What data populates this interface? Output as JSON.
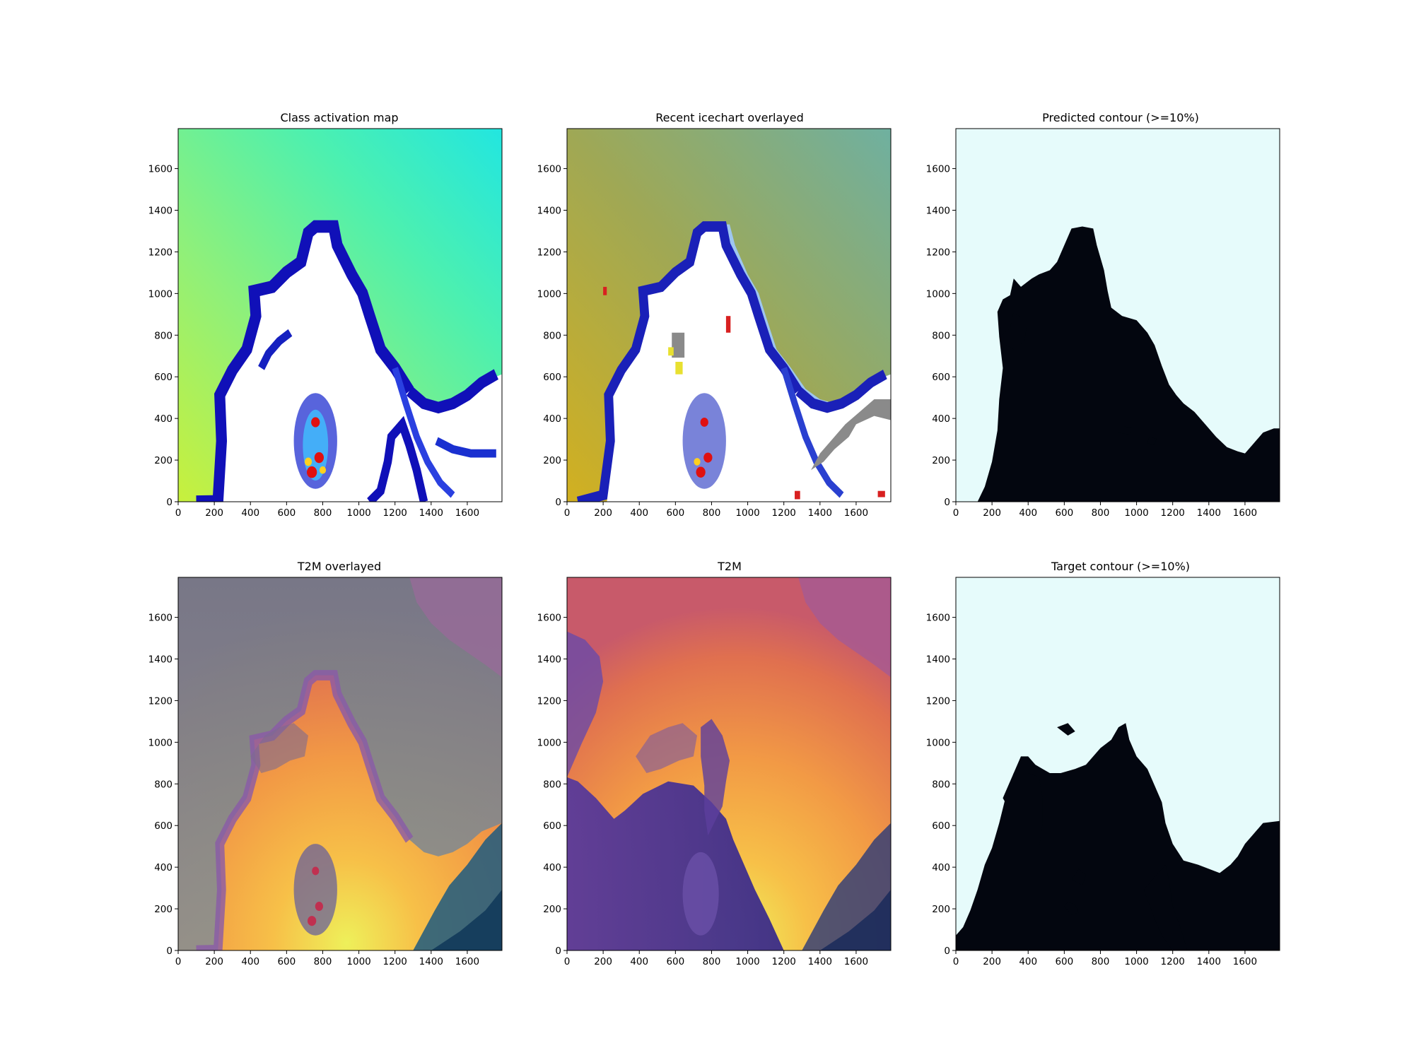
{
  "colors": {
    "frame": "#000000",
    "land_mask": "#03060f",
    "water_mask": "#e6fbfb",
    "cam_low": "#1b1bd6",
    "cam_high": "#c8f03c",
    "t2m_warm": "#f2e85a",
    "t2m_cold": "#3f2f8f"
  },
  "chart_data": [
    {
      "type": "heatmap",
      "title": "Class activation map",
      "colormap": "jet",
      "xlim": [
        0,
        1792
      ],
      "ylim": [
        0,
        1792
      ],
      "xticks": [
        "0",
        "200",
        "400",
        "600",
        "800",
        "1000",
        "1200",
        "1400",
        "1600"
      ],
      "yticks": [
        "0",
        "200",
        "400",
        "600",
        "800",
        "1000",
        "1200",
        "1400",
        "1600"
      ],
      "hotspots": [
        [
          740,
          1650
        ],
        [
          780,
          1580
        ],
        [
          760,
          1410
        ]
      ]
    },
    {
      "type": "heatmap",
      "title": "Recent icechart overlayed",
      "colormap": "jet",
      "xlim": [
        0,
        1792
      ],
      "ylim": [
        0,
        1792
      ],
      "xticks": [
        "0",
        "200",
        "400",
        "600",
        "800",
        "1000",
        "1200",
        "1400",
        "1600"
      ],
      "yticks": [
        "0",
        "200",
        "400",
        "600",
        "800",
        "1000",
        "1200",
        "1400",
        "1600"
      ]
    },
    {
      "type": "heatmap",
      "title": "Predicted contour (>=10%)",
      "colormap": "binary",
      "xlim": [
        0,
        1792
      ],
      "ylim": [
        0,
        1792
      ],
      "xticks": [
        "0",
        "200",
        "400",
        "600",
        "800",
        "1000",
        "1200",
        "1400",
        "1600"
      ],
      "yticks": [
        "0",
        "200",
        "400",
        "600",
        "800",
        "1000",
        "1200",
        "1400",
        "1600"
      ]
    },
    {
      "type": "heatmap",
      "title": "T2M overlayed",
      "colormap": "plasma",
      "xlim": [
        0,
        1792
      ],
      "ylim": [
        0,
        1792
      ],
      "xticks": [
        "0",
        "200",
        "400",
        "600",
        "800",
        "1000",
        "1200",
        "1400",
        "1600"
      ],
      "yticks": [
        "0",
        "200",
        "400",
        "600",
        "800",
        "1000",
        "1200",
        "1400",
        "1600"
      ]
    },
    {
      "type": "heatmap",
      "title": "T2M",
      "colormap": "plasma",
      "xlim": [
        0,
        1792
      ],
      "ylim": [
        0,
        1792
      ],
      "xticks": [
        "0",
        "200",
        "400",
        "600",
        "800",
        "1000",
        "1200",
        "1400",
        "1600"
      ],
      "yticks": [
        "0",
        "200",
        "400",
        "600",
        "800",
        "1000",
        "1200",
        "1400",
        "1600"
      ]
    },
    {
      "type": "heatmap",
      "title": "Target contour (>=10%)",
      "colormap": "binary",
      "xlim": [
        0,
        1792
      ],
      "ylim": [
        0,
        1792
      ],
      "xticks": [
        "0",
        "200",
        "400",
        "600",
        "800",
        "1000",
        "1200",
        "1400",
        "1600"
      ],
      "yticks": [
        "0",
        "200",
        "400",
        "600",
        "800",
        "1000",
        "1200",
        "1400",
        "1600"
      ]
    }
  ]
}
